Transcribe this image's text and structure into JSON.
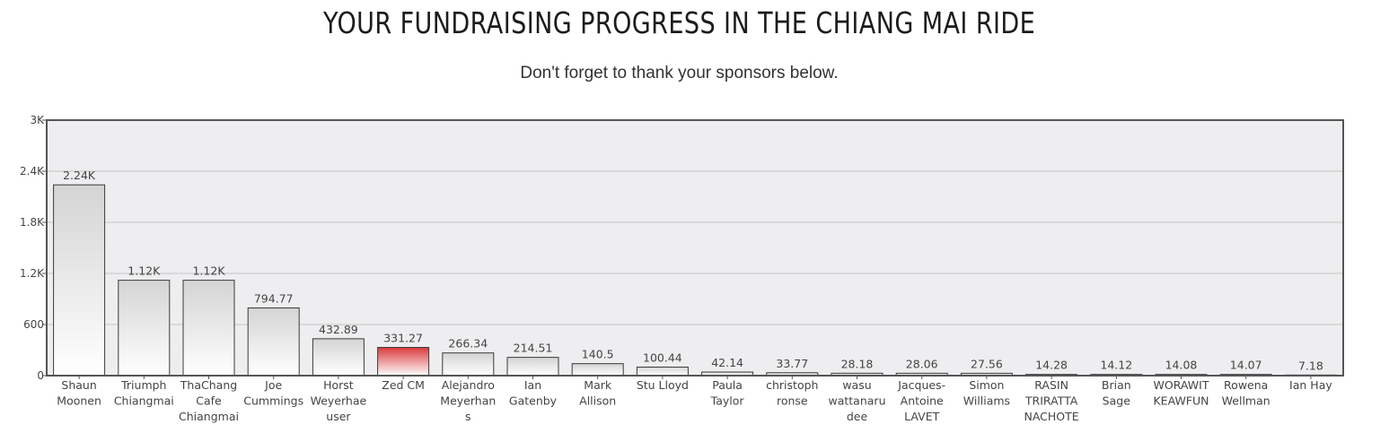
{
  "header": {
    "title": "YOUR FUNDRAISING PROGRESS IN THE CHIANG MAI RIDE",
    "subtitle": "Don't forget to thank your sponsors below."
  },
  "chart_data": {
    "type": "bar",
    "title": "",
    "xlabel": "",
    "ylabel": "",
    "ylim": [
      0,
      3000
    ],
    "yticks": [
      {
        "value": 0,
        "label": "0"
      },
      {
        "value": 600,
        "label": "600"
      },
      {
        "value": 1200,
        "label": "1.2K"
      },
      {
        "value": 1800,
        "label": "1.8K"
      },
      {
        "value": 2400,
        "label": "2.4K"
      },
      {
        "value": 3000,
        "label": "3K"
      }
    ],
    "grid": true,
    "categories": [
      [
        "Shaun",
        "Moonen"
      ],
      [
        "Triumph",
        "Chiangmai"
      ],
      [
        "ThaChang",
        "Cafe",
        "Chiangmai"
      ],
      [
        "Joe",
        "Cummings"
      ],
      [
        "Horst",
        "Weyerhae",
        "user"
      ],
      [
        "Zed CM"
      ],
      [
        "Alejandro",
        "Meyerhan",
        "s"
      ],
      [
        "Ian",
        "Gatenby"
      ],
      [
        "Mark",
        "Allison"
      ],
      [
        "Stu Lloyd"
      ],
      [
        "Paula",
        "Taylor"
      ],
      [
        "christoph",
        "ronse"
      ],
      [
        "wasu",
        "wattanaru",
        "dee"
      ],
      [
        "Jacques-",
        "Antoine",
        "LAVET"
      ],
      [
        "Simon",
        "Williams"
      ],
      [
        "RASIN",
        "TRIRATTA",
        "NACHOTE"
      ],
      [
        "Brian",
        "Sage"
      ],
      [
        "WORAWIT",
        "KEAWFUN"
      ],
      [
        "Rowena",
        "Wellman"
      ],
      [
        "Ian Hay"
      ]
    ],
    "values": [
      2240,
      1120,
      1120,
      794.77,
      432.89,
      331.27,
      266.34,
      214.51,
      140.5,
      100.44,
      42.14,
      33.77,
      28.18,
      28.06,
      27.56,
      14.28,
      14.12,
      14.08,
      14.07,
      7.18
    ],
    "data_labels": [
      "2.24K",
      "1.12K",
      "1.12K",
      "794.77",
      "432.89",
      "331.27",
      "266.34",
      "214.51",
      "140.5",
      "100.44",
      "42.14",
      "33.77",
      "28.18",
      "28.06",
      "27.56",
      "14.28",
      "14.12",
      "14.08",
      "14.07",
      "7.18"
    ],
    "highlight_index": 5,
    "colors": {
      "bar_top": "#d4d4d4",
      "bar_bottom": "#ffffff",
      "highlight_top": "#d93b3b",
      "highlight_bottom": "#ffffff",
      "bar_stroke": "#3a3a3a",
      "plot_bg": "#eeeef0",
      "grid": "#c4c4c4",
      "frame": "#555555"
    }
  }
}
